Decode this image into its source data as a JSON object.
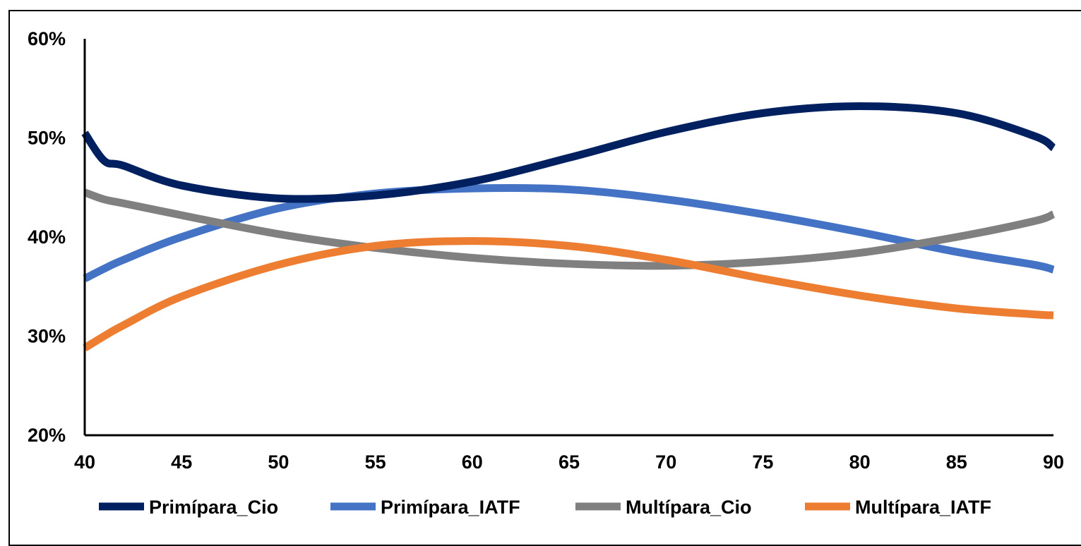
{
  "chart_data": {
    "type": "line",
    "title": "",
    "xlabel": "",
    "ylabel": "",
    "xlim": [
      40,
      90
    ],
    "ylim": [
      20,
      60
    ],
    "x_ticks": [
      "40",
      "45",
      "50",
      "55",
      "60",
      "65",
      "70",
      "75",
      "80",
      "85",
      "90"
    ],
    "y_ticks": [
      "20%",
      "30%",
      "40%",
      "50%",
      "60%"
    ],
    "grid": false,
    "legend_position": "bottom",
    "x": [
      40,
      41,
      42,
      45,
      50,
      55,
      60,
      65,
      70,
      75,
      80,
      85,
      89,
      90
    ],
    "series": [
      {
        "name": "Primípara_Cio",
        "color": "#002060",
        "values": [
          50.5,
          47.7,
          47.2,
          45.2,
          43.9,
          44.2,
          45.6,
          48.0,
          50.6,
          52.5,
          53.2,
          52.5,
          50.2,
          49.0
        ]
      },
      {
        "name": "Primípara_IATF",
        "color": "#4472C4",
        "values": [
          35.8,
          36.8,
          37.7,
          40.0,
          42.9,
          44.4,
          44.9,
          44.8,
          43.8,
          42.3,
          40.5,
          38.5,
          37.2,
          36.7
        ]
      },
      {
        "name": "Multípara_Cio",
        "color": "#808080",
        "values": [
          44.5,
          43.8,
          43.4,
          42.2,
          40.3,
          38.9,
          37.9,
          37.3,
          37.1,
          37.5,
          38.4,
          40.0,
          41.6,
          42.3
        ]
      },
      {
        "name": "Multípara_IATF",
        "color": "#ED7D31",
        "values": [
          28.8,
          30.0,
          31.1,
          34.0,
          37.2,
          39.1,
          39.6,
          39.1,
          37.7,
          35.8,
          34.1,
          32.8,
          32.2,
          32.1
        ]
      }
    ]
  }
}
